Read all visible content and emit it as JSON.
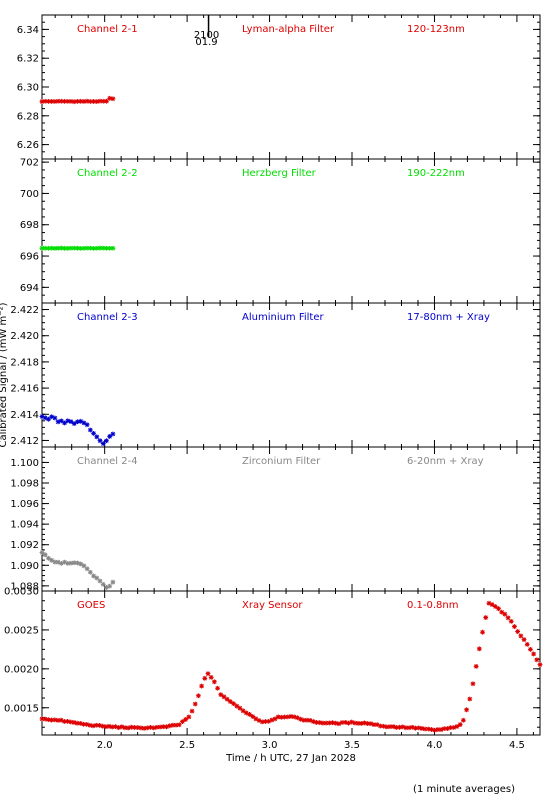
{
  "chart_data": [
    {
      "type": "scatter",
      "header": {
        "left": "Channel 2-1",
        "middle": "Lyman-alpha Filter",
        "right": "120-123nm"
      },
      "color": "#dd0000",
      "ylim": [
        6.25,
        6.35
      ],
      "yticks": [
        6.26,
        6.28,
        6.3,
        6.32,
        6.34
      ],
      "ytick_labels": [
        "6.26",
        "6.28",
        "6.30",
        "6.32",
        "6.34"
      ],
      "annotation": {
        "x": 2.63,
        "top": "2100",
        "bottom": "01.9"
      },
      "series": [
        {
          "x_start": 1.62,
          "x_end": 2.05,
          "y_start": 6.29,
          "y_end": 6.29,
          "noise": 0.0004,
          "end_bump": 0.002
        }
      ]
    },
    {
      "type": "scatter",
      "header": {
        "left": "Channel 2-2",
        "middle": "Herzberg Filter",
        "right": "190-222nm"
      },
      "color": "#00dd00",
      "ylim": [
        693,
        702.2
      ],
      "yticks": [
        694,
        696,
        698,
        700,
        702
      ],
      "ytick_labels": [
        "694",
        "696",
        "698",
        "700",
        "702"
      ],
      "series": [
        {
          "x_start": 1.62,
          "x_end": 2.05,
          "y_start": 696.5,
          "y_end": 696.5,
          "noise": 0.02,
          "end_bump": 0
        }
      ]
    },
    {
      "type": "scatter",
      "header": {
        "left": "Channel 2-3",
        "middle": "Aluminium Filter",
        "right": "17-80nm + Xray"
      },
      "color": "#0000cc",
      "ylim": [
        2.4115,
        2.4225
      ],
      "yticks": [
        2.412,
        2.414,
        2.416,
        2.418,
        2.42,
        2.422
      ],
      "ytick_labels": [
        "2.412",
        "2.414",
        "2.416",
        "2.418",
        "2.420",
        "2.422"
      ],
      "ylabel": "Calibrated Signal / (mW m⁻²)",
      "series": [
        {
          "points": [
            [
              1.62,
              2.4138
            ],
            [
              1.64,
              2.4137
            ],
            [
              1.66,
              2.4136
            ],
            [
              1.68,
              2.4138
            ],
            [
              1.7,
              2.4137
            ],
            [
              1.72,
              2.4134
            ],
            [
              1.74,
              2.4135
            ],
            [
              1.76,
              2.4133
            ],
            [
              1.78,
              2.4135
            ],
            [
              1.8,
              2.4134
            ],
            [
              1.82,
              2.4133
            ],
            [
              1.84,
              2.4135
            ],
            [
              1.86,
              2.4134
            ],
            [
              1.88,
              2.4133
            ],
            [
              1.9,
              2.4131
            ],
            [
              1.92,
              2.4127
            ],
            [
              1.94,
              2.4125
            ],
            [
              1.96,
              2.4122
            ],
            [
              1.98,
              2.4119
            ],
            [
              2.0,
              2.4117
            ],
            [
              2.02,
              2.4122
            ],
            [
              2.05,
              2.4125
            ]
          ]
        }
      ]
    },
    {
      "type": "scatter",
      "header": {
        "left": "Channel 2-4",
        "middle": "Zirconium Filter",
        "right": "6-20nm + Xray"
      },
      "color": "#888888",
      "ylim": [
        1.0875,
        1.1015
      ],
      "yticks": [
        1.088,
        1.09,
        1.092,
        1.094,
        1.096,
        1.098,
        1.1
      ],
      "ytick_labels": [
        "1.088",
        "1.090",
        "1.092",
        "1.094",
        "1.096",
        "1.098",
        "1.100"
      ],
      "series": [
        {
          "points": [
            [
              1.62,
              1.0912
            ],
            [
              1.64,
              1.091
            ],
            [
              1.66,
              1.0907
            ],
            [
              1.68,
              1.0905
            ],
            [
              1.7,
              1.0903
            ],
            [
              1.72,
              1.0903
            ],
            [
              1.74,
              1.0902
            ],
            [
              1.76,
              1.0903
            ],
            [
              1.78,
              1.0902
            ],
            [
              1.8,
              1.0902
            ],
            [
              1.82,
              1.0902
            ],
            [
              1.84,
              1.0902
            ],
            [
              1.86,
              1.0901
            ],
            [
              1.88,
              1.0899
            ],
            [
              1.9,
              1.0895
            ],
            [
              1.92,
              1.0892
            ],
            [
              1.94,
              1.0889
            ],
            [
              1.96,
              1.0886
            ],
            [
              1.98,
              1.0883
            ],
            [
              2.0,
              1.088
            ],
            [
              2.02,
              1.0878
            ],
            [
              2.05,
              1.0884
            ]
          ]
        }
      ]
    },
    {
      "type": "scatter",
      "header": {
        "left": "GOES",
        "middle": "Xray Sensor",
        "right": "0.1-0.8nm"
      },
      "color": "#dd0000",
      "ylim": [
        0.00115,
        0.003
      ],
      "yticks": [
        0.0015,
        0.002,
        0.0025,
        0.003
      ],
      "ytick_labels": [
        "0.0015",
        "0.0020",
        "0.0025",
        "0.0030"
      ],
      "xlabel": "Time / h UTC, 27 Jan 2028",
      "xticks": [
        2.0,
        2.5,
        3.0,
        3.5,
        4.0,
        4.5
      ],
      "xtick_labels": [
        "2.0",
        "2.5",
        "3.0",
        "3.5",
        "4.0",
        "4.5"
      ],
      "series": [
        {
          "points": [
            [
              1.62,
              0.00136
            ],
            [
              1.75,
              0.00133
            ],
            [
              1.9,
              0.00128
            ],
            [
              2.0,
              0.00126
            ],
            [
              2.2,
              0.00124
            ],
            [
              2.35,
              0.00125
            ],
            [
              2.45,
              0.00128
            ],
            [
              2.52,
              0.0014
            ],
            [
              2.56,
              0.0016
            ],
            [
              2.6,
              0.00185
            ],
            [
              2.63,
              0.00195
            ],
            [
              2.66,
              0.00185
            ],
            [
              2.7,
              0.00168
            ],
            [
              2.78,
              0.00155
            ],
            [
              2.85,
              0.00145
            ],
            [
              2.95,
              0.00132
            ],
            [
              3.0,
              0.00133
            ],
            [
              3.05,
              0.00138
            ],
            [
              3.12,
              0.00139
            ],
            [
              3.2,
              0.00135
            ],
            [
              3.3,
              0.00131
            ],
            [
              3.4,
              0.0013
            ],
            [
              3.5,
              0.00131
            ],
            [
              3.6,
              0.0013
            ],
            [
              3.7,
              0.00126
            ],
            [
              3.8,
              0.00125
            ],
            [
              3.9,
              0.00124
            ],
            [
              4.0,
              0.00121
            ],
            [
              4.1,
              0.00124
            ],
            [
              4.15,
              0.00126
            ],
            [
              4.18,
              0.00136
            ],
            [
              4.22,
              0.00165
            ],
            [
              4.25,
              0.002
            ],
            [
              4.28,
              0.00235
            ],
            [
              4.31,
              0.00265
            ],
            [
              4.33,
              0.00285
            ],
            [
              4.36,
              0.00282
            ],
            [
              4.4,
              0.00275
            ],
            [
              4.45,
              0.00265
            ],
            [
              4.5,
              0.0025
            ],
            [
              4.55,
              0.00235
            ],
            [
              4.6,
              0.0022
            ],
            [
              4.64,
              0.00205
            ]
          ]
        }
      ]
    }
  ],
  "x_axis_range": [
    1.62,
    4.64
  ],
  "footnote": "(1 minute averages)"
}
